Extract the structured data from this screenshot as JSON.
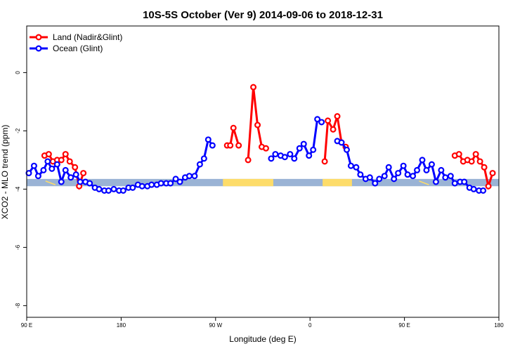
{
  "chart_data": {
    "type": "line",
    "title": "10S-5S October (Ver 9)   2014-09-06 to 2018-12-31",
    "xlabel": "Longitude (deg E)",
    "ylabel": "XCO2 - MLO trend (ppm)",
    "xlim": [
      90,
      540
    ],
    "ylim": [
      -8.4,
      1.6
    ],
    "x_ticks": [
      {
        "value": 90,
        "label": "90 E"
      },
      {
        "value": 180,
        "label": "180"
      },
      {
        "value": 270,
        "label": "90 W"
      },
      {
        "value": 360,
        "label": "0"
      },
      {
        "value": 450,
        "label": "90 E"
      },
      {
        "value": 540,
        "label": "180"
      }
    ],
    "y_ticks": [
      {
        "value": 0,
        "label": "0"
      },
      {
        "value": -2,
        "label": "-2"
      },
      {
        "value": -4,
        "label": "-4"
      },
      {
        "value": -6,
        "label": "-6"
      },
      {
        "value": -8,
        "label": "-8"
      }
    ],
    "grid": false,
    "legend_position": "top-left",
    "land_band": {
      "y_range": [
        -3.9,
        -3.65
      ],
      "color": "#9ab3d5",
      "land_color": "#fddc6a",
      "land_segments": [
        [
          277,
          325
        ],
        [
          372,
          400
        ]
      ],
      "island_marks": [
        112,
        468
      ]
    },
    "series": [
      {
        "name": "Land (Nadir&Glint)",
        "color": "#ff0000",
        "points": [
          [
            107,
            -2.85
          ],
          [
            111,
            -2.8
          ],
          [
            115,
            -3.05
          ],
          [
            119,
            -3.0
          ],
          [
            123,
            -3.0
          ],
          [
            127,
            -2.8
          ],
          [
            131,
            -3.05
          ],
          [
            136,
            -3.25
          ],
          [
            140,
            -3.9
          ],
          [
            144,
            -3.45
          ],
          [
            281,
            -2.5
          ],
          [
            284,
            -2.5
          ],
          [
            287,
            -1.9
          ],
          [
            292,
            -2.5
          ],
          [
            301,
            -3.0
          ],
          [
            306,
            -0.5
          ],
          [
            310,
            -1.8
          ],
          [
            314,
            -2.55
          ],
          [
            318,
            -2.6
          ],
          [
            374,
            -3.05
          ],
          [
            377,
            -1.65
          ],
          [
            382,
            -1.95
          ],
          [
            386,
            -1.5
          ],
          [
            390,
            -2.4
          ],
          [
            394,
            -2.55
          ],
          [
            498,
            -2.85
          ],
          [
            502,
            -2.8
          ],
          [
            506,
            -3.05
          ],
          [
            510,
            -3.0
          ],
          [
            514,
            -3.05
          ],
          [
            518,
            -2.8
          ],
          [
            522,
            -3.05
          ],
          [
            526,
            -3.25
          ],
          [
            530,
            -3.9
          ],
          [
            534,
            -3.45
          ]
        ]
      },
      {
        "name": "Ocean (Glint)",
        "color": "#0000ff",
        "points": [
          [
            92,
            -3.45
          ],
          [
            97,
            -3.2
          ],
          [
            101,
            -3.55
          ],
          [
            106,
            -3.35
          ],
          [
            110,
            -3.05
          ],
          [
            114,
            -3.3
          ],
          [
            119,
            -3.15
          ],
          [
            123,
            -3.75
          ],
          [
            127,
            -3.35
          ],
          [
            132,
            -3.6
          ],
          [
            137,
            -3.5
          ],
          [
            141,
            -3.75
          ],
          [
            146,
            -3.75
          ],
          [
            150,
            -3.8
          ],
          [
            155,
            -3.95
          ],
          [
            159,
            -4.0
          ],
          [
            164,
            -4.05
          ],
          [
            168,
            -4.05
          ],
          [
            173,
            -4.0
          ],
          [
            178,
            -4.05
          ],
          [
            182,
            -4.05
          ],
          [
            187,
            -3.95
          ],
          [
            191,
            -3.95
          ],
          [
            196,
            -3.85
          ],
          [
            200,
            -3.9
          ],
          [
            205,
            -3.9
          ],
          [
            209,
            -3.85
          ],
          [
            214,
            -3.85
          ],
          [
            218,
            -3.8
          ],
          [
            223,
            -3.8
          ],
          [
            227,
            -3.8
          ],
          [
            232,
            -3.65
          ],
          [
            236,
            -3.75
          ],
          [
            241,
            -3.6
          ],
          [
            245,
            -3.55
          ],
          [
            250,
            -3.55
          ],
          [
            255,
            -3.15
          ],
          [
            259,
            -2.95
          ],
          [
            263,
            -2.3
          ],
          [
            267,
            -2.5
          ],
          [
            323,
            -2.95
          ],
          [
            327,
            -2.8
          ],
          [
            332,
            -2.85
          ],
          [
            336,
            -2.9
          ],
          [
            341,
            -2.8
          ],
          [
            345,
            -2.95
          ],
          [
            350,
            -2.6
          ],
          [
            354,
            -2.45
          ],
          [
            359,
            -2.85
          ],
          [
            363,
            -2.65
          ],
          [
            367,
            -1.6
          ],
          [
            371,
            -1.7
          ],
          [
            386,
            -2.35
          ],
          [
            390,
            -2.4
          ],
          [
            395,
            -2.65
          ],
          [
            399,
            -3.2
          ],
          [
            404,
            -3.25
          ],
          [
            408,
            -3.5
          ],
          [
            413,
            -3.65
          ],
          [
            417,
            -3.6
          ],
          [
            422,
            -3.8
          ],
          [
            426,
            -3.65
          ],
          [
            431,
            -3.55
          ],
          [
            435,
            -3.25
          ],
          [
            440,
            -3.65
          ],
          [
            444,
            -3.45
          ],
          [
            449,
            -3.2
          ],
          [
            453,
            -3.5
          ],
          [
            458,
            -3.55
          ],
          [
            462,
            -3.35
          ],
          [
            467,
            -3.0
          ],
          [
            471,
            -3.35
          ],
          [
            476,
            -3.15
          ],
          [
            480,
            -3.75
          ],
          [
            485,
            -3.35
          ],
          [
            489,
            -3.6
          ],
          [
            494,
            -3.55
          ],
          [
            498,
            -3.8
          ],
          [
            503,
            -3.75
          ],
          [
            507,
            -3.75
          ],
          [
            512,
            -3.95
          ],
          [
            516,
            -4.0
          ],
          [
            521,
            -4.05
          ],
          [
            525,
            -4.05
          ]
        ]
      }
    ]
  }
}
